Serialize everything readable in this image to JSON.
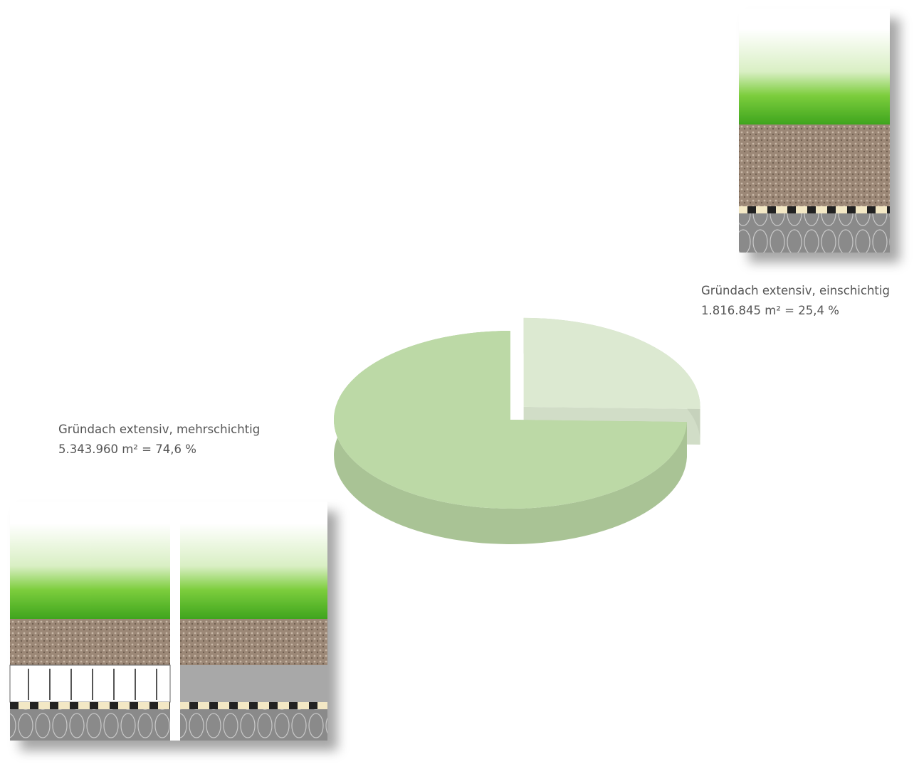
{
  "chart_data": {
    "type": "pie",
    "categories": [
      "Gründach extensiv, einschichtig",
      "Gründach extensiv, mehrschichtig"
    ],
    "values": [
      25.4,
      74.6
    ],
    "value_labels": [
      "1.816.845 m² = 25,4 %",
      "5.343.960 m² = 74,6 %"
    ],
    "colors": [
      "#dce9d1",
      "#bcd9a6"
    ],
    "exploded": [
      true,
      false
    ]
  }
}
